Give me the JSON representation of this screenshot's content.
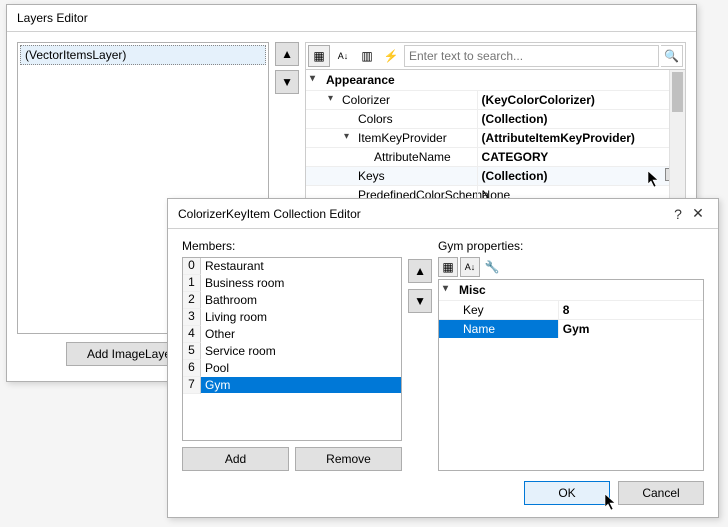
{
  "layers_editor": {
    "title": "Layers Editor",
    "list_item": "(VectorItemsLayer)",
    "add_button": "Add ImageLayer",
    "search_placeholder": "Enter text to search...",
    "property_grid": {
      "category": "Appearance",
      "rows": [
        {
          "indent": 1,
          "name": "Colorizer",
          "value": "(KeyColorColorizer)",
          "bold": true,
          "exp": "▾"
        },
        {
          "indent": 2,
          "name": "Colors",
          "value": "(Collection)",
          "bold": true
        },
        {
          "indent": 2,
          "name": "ItemKeyProvider",
          "value": "(AttributeItemKeyProvider)",
          "bold": true,
          "exp": "▾"
        },
        {
          "indent": 3,
          "name": "AttributeName",
          "value": "CATEGORY",
          "bold": true
        },
        {
          "indent": 2,
          "name": "Keys",
          "value": "(Collection)",
          "bold": true,
          "dots": true,
          "hover": true
        },
        {
          "indent": 2,
          "name": "PredefinedColorSchema",
          "value": "None",
          "bold": false
        }
      ]
    }
  },
  "collection_editor": {
    "title": "ColorizerKeyItem Collection Editor",
    "members_label": "Members:",
    "props_label": "Gym properties:",
    "members": [
      "Restaurant",
      "Business room",
      "Bathroom",
      "Living room",
      "Other",
      "Service room",
      "Pool",
      "Gym"
    ],
    "selected_index": 7,
    "add": "Add",
    "remove": "Remove",
    "misc": "Misc",
    "prop_key_label": "Key",
    "prop_key_value": "8",
    "prop_name_label": "Name",
    "prop_name_value": "Gym",
    "ok": "OK",
    "cancel": "Cancel"
  },
  "glyphs": {
    "up": "▲",
    "down": "▼",
    "help": "?",
    "close": "✕",
    "categorized": "▤",
    "az": "A↓",
    "events": "⚡",
    "pages": "▥",
    "search": "🔍",
    "wrench": "🔧"
  }
}
